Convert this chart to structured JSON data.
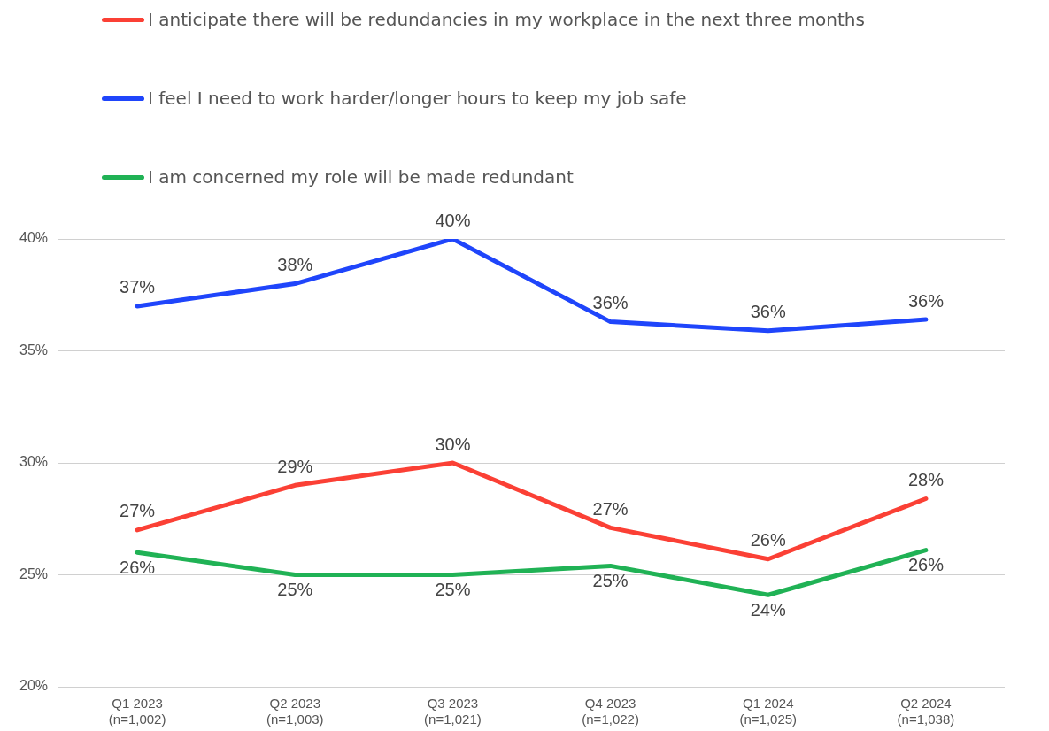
{
  "chart_data": {
    "type": "line",
    "categories": [
      "Q1 2023\n(n=1,002)",
      "Q2 2023\n(n=1,003)",
      "Q3 2023\n(n=1,021)",
      "Q4 2023\n(n=1,022)",
      "Q1 2024\n(n=1,025)",
      "Q2 2024\n(n=1,038)"
    ],
    "series": [
      {
        "name": "I anticipate there will be redundancies in my workplace in the next three months",
        "color": "#fb4035",
        "values": [
          27.0,
          29.0,
          30.0,
          27.1,
          25.7,
          28.4
        ],
        "value_labels": [
          "27%",
          "29%",
          "30%",
          "27%",
          "26%",
          "28%"
        ]
      },
      {
        "name": "I feel I need to work harder/longer hours to keep my job safe",
        "color": "#1f45fb",
        "values": [
          37.0,
          38.0,
          40.0,
          36.3,
          35.9,
          36.4
        ],
        "value_labels": [
          "37%",
          "38%",
          "40%",
          "36%",
          "36%",
          "36%"
        ]
      },
      {
        "name": "I am concerned my role will be made redundant",
        "color": "#20b255",
        "values": [
          26.0,
          25.0,
          25.0,
          25.4,
          24.1,
          26.1
        ],
        "value_labels": [
          "26%",
          "25%",
          "25%",
          "25%",
          "24%",
          "26%"
        ]
      }
    ],
    "ylim": [
      20,
      40
    ],
    "yticks": [
      {
        "value": 20,
        "label": "20%"
      },
      {
        "value": 25,
        "label": "25%"
      },
      {
        "value": 30,
        "label": "30%"
      },
      {
        "value": 35,
        "label": "35%"
      },
      {
        "value": 40,
        "label": "40%"
      }
    ],
    "grid": "y",
    "legend": "top left",
    "marker": "none",
    "line_style": "solid"
  }
}
